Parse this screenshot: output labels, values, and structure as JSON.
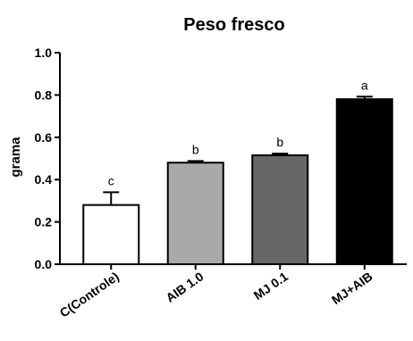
{
  "chart_data": {
    "type": "bar",
    "title": "Peso fresco",
    "xlabel": "",
    "ylabel": "grama",
    "ylim": [
      0,
      1.0
    ],
    "yticks": [
      "0.0",
      "0.2",
      "0.4",
      "0.6",
      "0.8",
      "1.0"
    ],
    "categories": [
      "C(Controle)",
      "AIB 1.0",
      "MJ 0.1",
      "MJ+AIB"
    ],
    "values": [
      0.28,
      0.48,
      0.515,
      0.78
    ],
    "errors": [
      0.06,
      0.008,
      0.008,
      0.012
    ],
    "significance": [
      "c",
      "b",
      "b",
      "a"
    ],
    "bar_colors": [
      "#ffffff",
      "#a9a9a9",
      "#666666",
      "#000000"
    ],
    "grid": false,
    "legend": "none"
  }
}
